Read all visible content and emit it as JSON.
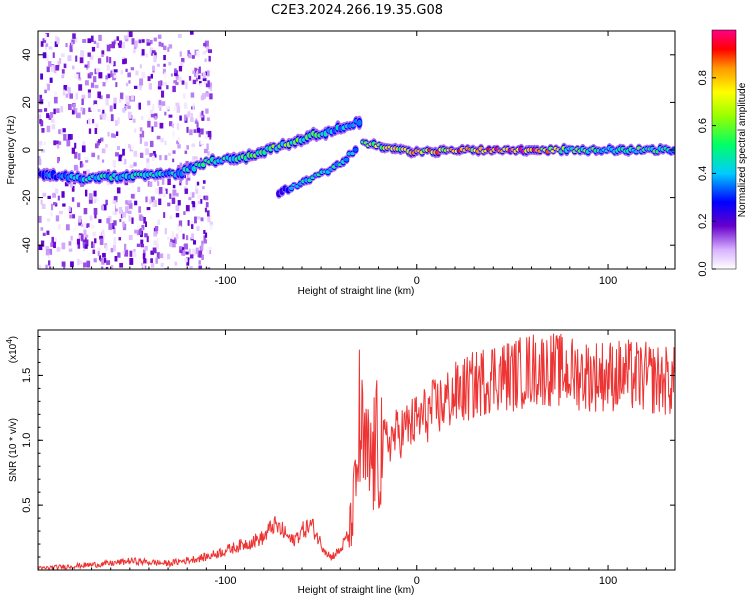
{
  "title": "C2E3.2024.266.19.35.G08",
  "chart_data": [
    {
      "type": "heatmap",
      "xlabel": "Height of straight line (km)",
      "ylabel": "Frequency (Hz)",
      "xlim": [
        -198,
        135
      ],
      "ylim": [
        -50,
        50
      ],
      "xticks": [
        -100,
        0,
        100
      ],
      "yticks": [
        -40,
        -20,
        0,
        20,
        40
      ],
      "colorbar": {
        "label": "Normalized spectral amplitude",
        "range": [
          0,
          1
        ],
        "ticks": [
          0.0,
          0.2,
          0.4,
          0.6,
          0.8
        ],
        "tick_labels": [
          "0.0",
          "0.2",
          "0.4",
          "0.6",
          "0.8"
        ]
      },
      "ridge": [
        {
          "x": -198,
          "f": -10,
          "amp": 0.3
        },
        {
          "x": -175,
          "f": -12,
          "amp": 0.45
        },
        {
          "x": -150,
          "f": -11,
          "amp": 0.5
        },
        {
          "x": -125,
          "f": -10,
          "amp": 0.45
        },
        {
          "x": -110,
          "f": -5,
          "amp": 0.5
        },
        {
          "x": -90,
          "f": -3,
          "amp": 0.55
        },
        {
          "x": -70,
          "f": 2,
          "amp": 0.6
        },
        {
          "x": -55,
          "f": 6,
          "amp": 0.55
        },
        {
          "x": -40,
          "f": 9,
          "amp": 0.45
        },
        {
          "x": -30,
          "f": 12,
          "amp": 0.4
        },
        {
          "x": -28,
          "f": 3,
          "amp": 0.6
        },
        {
          "x": -15,
          "f": 1,
          "amp": 0.75
        },
        {
          "x": 0,
          "f": -1,
          "amp": 0.8
        },
        {
          "x": 20,
          "f": 0,
          "amp": 0.85
        },
        {
          "x": 40,
          "f": 0,
          "amp": 0.85
        },
        {
          "x": 60,
          "f": 0,
          "amp": 0.95
        },
        {
          "x": 80,
          "f": 0,
          "amp": 0.6
        },
        {
          "x": 100,
          "f": 0,
          "amp": 0.5
        },
        {
          "x": 120,
          "f": 0,
          "amp": 0.55
        },
        {
          "x": 135,
          "f": 0,
          "amp": 0.45
        }
      ],
      "secondary_ridge": [
        {
          "x": -72,
          "f": -18,
          "amp": 0.3
        },
        {
          "x": -55,
          "f": -12,
          "amp": 0.5
        },
        {
          "x": -42,
          "f": -7,
          "amp": 0.5
        },
        {
          "x": -32,
          "f": 0,
          "amp": 0.4
        }
      ]
    },
    {
      "type": "line",
      "xlabel": "Height of straight line (km)",
      "ylabel": "SNR (10 * v/v)",
      "y_multiplier": "(x10",
      "y_multiplier_exp": "4",
      "y_multiplier_close": ")",
      "xlim": [
        -198,
        135
      ],
      "ylim": [
        0,
        1.85
      ],
      "xticks": [
        -100,
        0,
        100
      ],
      "yticks": [
        0.5,
        1.0,
        1.5
      ],
      "ytick_labels": [
        "0.5",
        "1.0",
        "1.5"
      ],
      "color": "#ee3333",
      "series": [
        {
          "x": [
            -198,
            -180,
            -160,
            -150,
            -130,
            -110,
            -100,
            -90,
            -80,
            -75,
            -70,
            -65,
            -60,
            -55,
            -50,
            -45,
            -40,
            -35,
            -32,
            -30,
            -28,
            -25,
            -20,
            -10,
            0,
            10,
            20,
            30,
            40,
            50,
            60,
            70,
            80,
            90,
            100,
            110,
            120,
            135
          ],
          "y": [
            0.01,
            0.03,
            0.05,
            0.07,
            0.05,
            0.1,
            0.15,
            0.2,
            0.25,
            0.35,
            0.3,
            0.22,
            0.3,
            0.35,
            0.2,
            0.1,
            0.15,
            0.3,
            0.6,
            1.1,
            0.9,
            0.8,
            0.95,
            1.05,
            1.15,
            1.25,
            1.35,
            1.42,
            1.5,
            1.5,
            1.55,
            1.55,
            1.52,
            1.5,
            1.5,
            1.5,
            1.48,
            1.45
          ]
        }
      ]
    }
  ]
}
